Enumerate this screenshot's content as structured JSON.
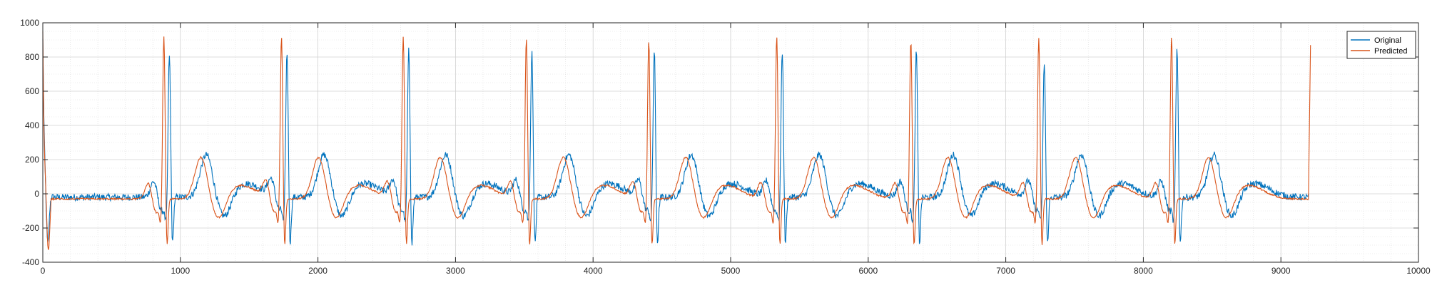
{
  "chart_data": {
    "type": "line",
    "title": "",
    "xlabel": "",
    "ylabel": "",
    "xlim": [
      0,
      10000
    ],
    "ylim": [
      -400,
      1000
    ],
    "xticks": [
      0,
      1000,
      2000,
      3000,
      4000,
      5000,
      6000,
      7000,
      8000,
      9000,
      10000
    ],
    "yticks": [
      -400,
      -200,
      0,
      200,
      400,
      600,
      800,
      1000
    ],
    "grid": "major and minor (dotted)",
    "legend_location": "top-right",
    "x_end": 9200,
    "series": [
      {
        "name": "Original",
        "color": "#0072BD",
        "r_peaks": [
          920,
          1775,
          2660,
          3555,
          4445,
          5375,
          6350,
          7280,
          8245
        ],
        "peak_values": [
          840,
          850,
          860,
          850,
          860,
          860,
          860,
          790,
          870
        ],
        "t_wave_peak": 230,
        "baseline": -20
      },
      {
        "name": "Predicted",
        "color": "#D95319",
        "r_peaks": [
          920,
          1775,
          2660,
          3555,
          4445,
          5375,
          6350,
          7280,
          8245
        ],
        "peak_values": [
          940,
          940,
          940,
          930,
          920,
          940,
          920,
          940,
          940
        ],
        "t_wave_peak": 215,
        "baseline": -30,
        "end_value": 870
      }
    ],
    "legend": [
      "Original",
      "Predicted"
    ]
  }
}
